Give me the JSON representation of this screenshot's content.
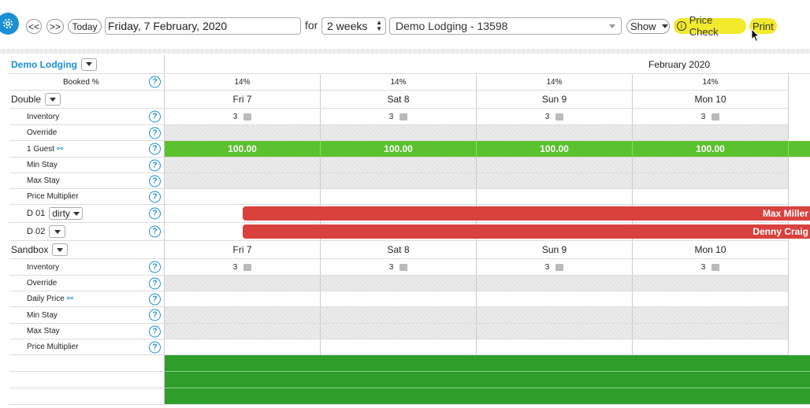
{
  "toolbar": {
    "prev_label": "<<",
    "next_label": ">>",
    "today_label": "Today",
    "date_value": "Friday, 7 February, 2020",
    "for_label": "for",
    "period_value": "2 weeks",
    "property_value": "Demo Lodging - 13598",
    "show_label": "Show",
    "price_check_label": "Price Check",
    "print_label": "Print"
  },
  "header": {
    "property_name": "Demo Lodging",
    "month_label": "February 2020",
    "booked_label": "Booked %",
    "booked_values": [
      "14%",
      "14%",
      "14%",
      "14%"
    ]
  },
  "days": [
    "Fri 7",
    "Sat 8",
    "Sun 9",
    "Mon 10"
  ],
  "room_types": [
    {
      "name": "Double",
      "rows": {
        "inventory_label": "Inventory",
        "inventory_values": [
          "3",
          "3",
          "3",
          "3"
        ],
        "override_label": "Override",
        "guest_label": "1 Guest",
        "guest_prices": [
          "100.00",
          "100.00",
          "100.00",
          "100.00"
        ],
        "min_stay_label": "Min Stay",
        "max_stay_label": "Max Stay",
        "price_multiplier_label": "Price Multiplier"
      },
      "units": [
        {
          "name": "D 01",
          "status": "dirty",
          "booking_guest": "Max Miller"
        },
        {
          "name": "D 02",
          "status": "",
          "booking_guest": "Denny Craig"
        }
      ]
    },
    {
      "name": "Sandbox",
      "rows": {
        "inventory_label": "Inventory",
        "inventory_values": [
          "3",
          "3",
          "3",
          "3"
        ],
        "override_label": "Override",
        "daily_price_label": "Daily Price",
        "min_stay_label": "Min Stay",
        "max_stay_label": "Max Stay",
        "price_multiplier_label": "Price Multiplier"
      }
    }
  ],
  "help_glyph": "?",
  "colors": {
    "accent": "#1a8fd6",
    "price_green": "#5cc12e",
    "booking_red": "#d9413d",
    "highlight_yellow": "#f2ea2c",
    "block_green": "#2e9e2b"
  }
}
